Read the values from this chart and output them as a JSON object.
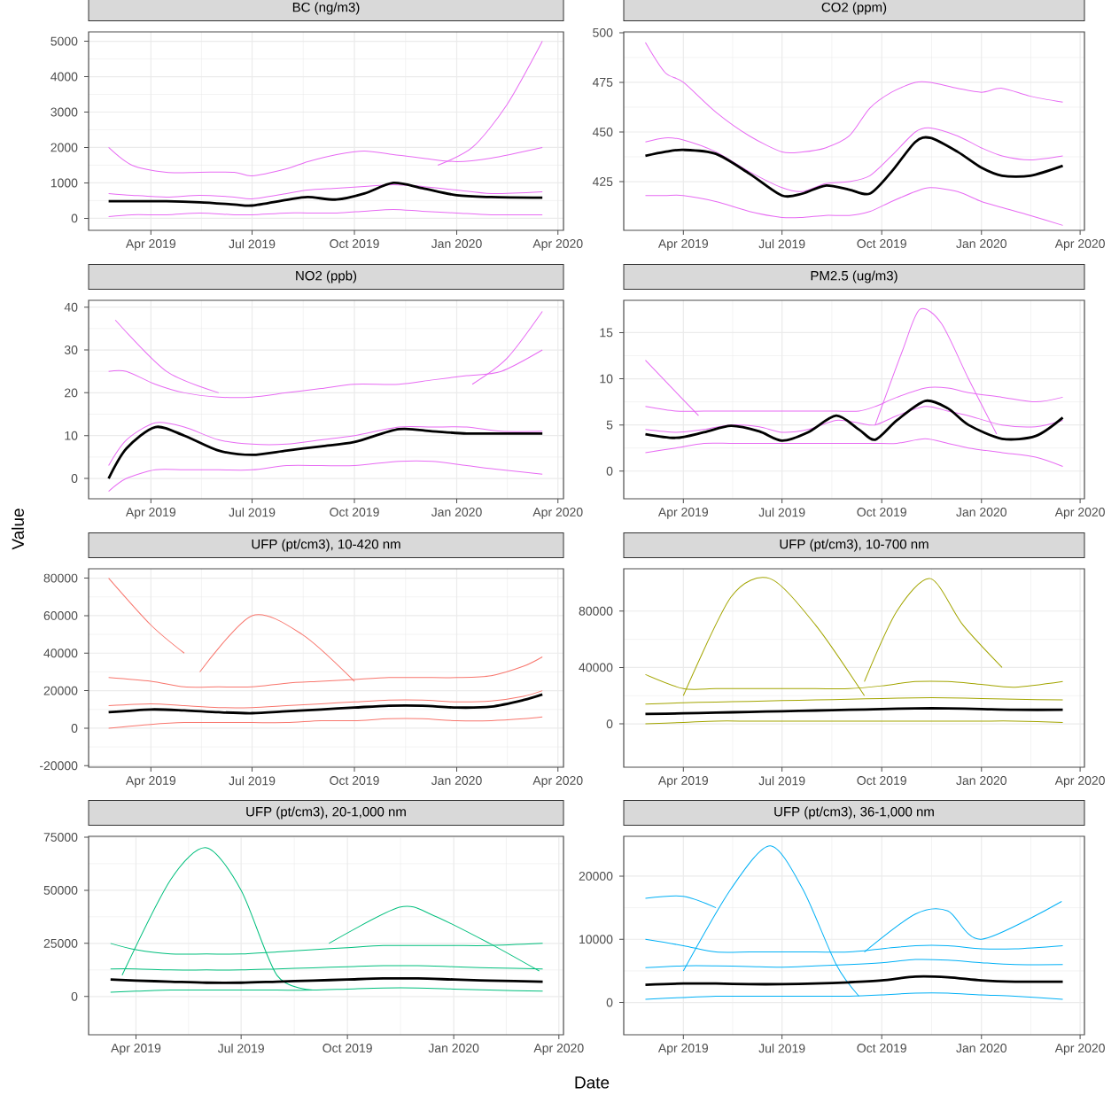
{
  "chart_data": [
    {
      "type": "line",
      "title": "BC (ng/m3)",
      "grid": true,
      "xlim": [
        "2019-02-04",
        "2020-04-06"
      ],
      "xticks": [
        {
          "value": "2019-04-01",
          "label": "Apr 2019"
        },
        {
          "value": "2019-07-01",
          "label": "Jul 2019"
        },
        {
          "value": "2019-10-01",
          "label": "Oct 2019"
        },
        {
          "value": "2020-01-01",
          "label": "Jan 2020"
        },
        {
          "value": "2020-04-01",
          "label": "Apr 2020"
        }
      ],
      "ylim": [
        -340,
        5265
      ],
      "yticks": [
        0,
        1000,
        2000,
        3000,
        4000,
        5000
      ],
      "x": [
        "2019-02-22",
        "2019-03-15",
        "2019-04-15",
        "2019-05-15",
        "2019-06-15",
        "2019-07-01",
        "2019-08-01",
        "2019-08-20",
        "2019-09-15",
        "2019-10-10",
        "2019-11-05",
        "2019-12-01",
        "2020-01-01",
        "2020-02-01",
        "2020-03-18"
      ],
      "series": [
        {
          "color": "#e76bf3",
          "values": [
            700,
            650,
            600,
            650,
            600,
            550,
            700,
            800,
            850,
            900,
            950,
            900,
            800,
            700,
            750
          ]
        },
        {
          "color": "#e76bf3",
          "values": [
            50,
            100,
            100,
            150,
            100,
            100,
            150,
            150,
            150,
            200,
            250,
            200,
            150,
            100,
            100
          ]
        },
        {
          "color": "#e76bf3",
          "values": [
            2000,
            1500,
            1300,
            1300,
            1300,
            1200,
            1400,
            1600,
            1800,
            1900,
            1800,
            1700,
            1600,
            1700,
            2000
          ]
        },
        {
          "color": "#e76bf3",
          "x": [
            "2019-12-15",
            "2020-01-15",
            "2020-02-15",
            "2020-03-18"
          ],
          "values": [
            1500,
            2000,
            3200,
            5000
          ]
        },
        {
          "color": "#000000",
          "values": [
            480,
            480,
            480,
            450,
            390,
            360,
            520,
            600,
            530,
            700,
            1000,
            850,
            650,
            600,
            580
          ]
        }
      ]
    },
    {
      "type": "line",
      "title": "CO2 (ppm)",
      "grid": true,
      "xlim": [
        "2019-02-05",
        "2020-04-05"
      ],
      "xticks": [
        {
          "value": "2019-04-01",
          "label": "Apr 2019"
        },
        {
          "value": "2019-07-01",
          "label": "Jul 2019"
        },
        {
          "value": "2019-10-01",
          "label": "Oct 2019"
        },
        {
          "value": "2020-01-01",
          "label": "Jan 2020"
        },
        {
          "value": "2020-04-01",
          "label": "Apr 2020"
        }
      ],
      "ylim": [
        400.5,
        500.4
      ],
      "yticks": [
        425,
        450,
        475,
        500
      ],
      "x": [
        "2019-02-25",
        "2019-03-15",
        "2019-04-01",
        "2019-05-01",
        "2019-06-01",
        "2019-07-01",
        "2019-07-20",
        "2019-08-10",
        "2019-09-01",
        "2019-09-20",
        "2019-10-10",
        "2019-11-01",
        "2019-11-15",
        "2019-12-10",
        "2020-01-01",
        "2020-01-20",
        "2020-02-15",
        "2020-03-16"
      ],
      "series": [
        {
          "color": "#e76bf3",
          "values": [
            445,
            447,
            446,
            440,
            430,
            422,
            420,
            424,
            425,
            428,
            438,
            450,
            452,
            448,
            442,
            438,
            436,
            438
          ]
        },
        {
          "color": "#e76bf3",
          "values": [
            418,
            418,
            418,
            415,
            410,
            407,
            407,
            408,
            408,
            410,
            415,
            420,
            422,
            420,
            415,
            412,
            408,
            403
          ]
        },
        {
          "color": "#e76bf3",
          "values": [
            495,
            480,
            475,
            460,
            448,
            440,
            440,
            442,
            448,
            462,
            470,
            475,
            475,
            472,
            470,
            472,
            468,
            465
          ]
        },
        {
          "color": "#000000",
          "values": [
            438,
            440,
            441,
            439,
            429,
            418,
            419,
            423,
            421,
            419,
            430,
            445,
            447,
            440,
            432,
            428,
            428,
            433
          ]
        }
      ]
    },
    {
      "type": "line",
      "title": "NO2 (ppb)",
      "ylabel": "Value",
      "grid": true,
      "xlim": [
        "2019-02-04",
        "2020-04-06"
      ],
      "xticks": [
        {
          "value": "2019-04-01",
          "label": "Apr 2019"
        },
        {
          "value": "2019-07-01",
          "label": "Jul 2019"
        },
        {
          "value": "2019-10-01",
          "label": "Oct 2019"
        },
        {
          "value": "2020-01-01",
          "label": "Jan 2020"
        },
        {
          "value": "2020-04-01",
          "label": "Apr 2020"
        }
      ],
      "ylim": [
        -4.75,
        41.6
      ],
      "yticks": [
        0,
        10,
        20,
        30,
        40
      ],
      "x": [
        "2019-02-22",
        "2019-03-10",
        "2019-04-05",
        "2019-05-01",
        "2019-06-01",
        "2019-07-01",
        "2019-08-01",
        "2019-09-01",
        "2019-10-01",
        "2019-11-10",
        "2019-12-10",
        "2020-01-10",
        "2020-02-10",
        "2020-03-18"
      ],
      "series": [
        {
          "color": "#e76bf3",
          "values": [
            3,
            9,
            13,
            12,
            9,
            8,
            8,
            9,
            10,
            12,
            12,
            12,
            11,
            11
          ]
        },
        {
          "color": "#e76bf3",
          "values": [
            -3,
            0,
            2,
            2,
            2,
            2,
            3,
            3,
            3,
            4,
            4,
            3,
            2,
            1
          ]
        },
        {
          "color": "#e76bf3",
          "values": [
            25,
            25,
            22,
            20,
            19,
            19,
            20,
            21,
            22,
            22,
            23,
            24,
            25,
            30
          ]
        },
        {
          "color": "#e76bf3",
          "x": [
            "2020-01-15",
            "2020-02-15",
            "2020-03-18"
          ],
          "values": [
            22,
            28,
            39
          ]
        },
        {
          "color": "#e76bf3",
          "x": [
            "2019-02-28",
            "2019-04-15",
            "2019-06-01"
          ],
          "values": [
            37,
            25,
            20
          ]
        },
        {
          "color": "#000000",
          "values": [
            0,
            7,
            12,
            10,
            6.5,
            5.5,
            6.5,
            7.5,
            8.5,
            11.5,
            11,
            10.5,
            10.5,
            10.5
          ]
        }
      ]
    },
    {
      "type": "line",
      "title": "PM2.5 (ug/m3)",
      "grid": true,
      "xlim": [
        "2019-02-05",
        "2020-04-05"
      ],
      "xticks": [
        {
          "value": "2019-04-01",
          "label": "Apr 2019"
        },
        {
          "value": "2019-07-01",
          "label": "Jul 2019"
        },
        {
          "value": "2019-10-01",
          "label": "Oct 2019"
        },
        {
          "value": "2020-01-01",
          "label": "Jan 2020"
        },
        {
          "value": "2020-04-01",
          "label": "Apr 2020"
        }
      ],
      "ylim": [
        -3,
        18.5
      ],
      "yticks": [
        0,
        5,
        10,
        15
      ],
      "x": [
        "2019-02-25",
        "2019-03-25",
        "2019-04-20",
        "2019-05-15",
        "2019-06-10",
        "2019-07-01",
        "2019-07-25",
        "2019-08-20",
        "2019-09-10",
        "2019-09-25",
        "2019-10-15",
        "2019-11-10",
        "2019-12-01",
        "2019-12-20",
        "2020-01-20",
        "2020-02-20",
        "2020-03-16"
      ],
      "series": [
        {
          "color": "#e76bf3",
          "values": [
            4.5,
            4.2,
            4.5,
            5,
            4.8,
            4.2,
            4.5,
            5.5,
            5.2,
            5,
            6,
            7,
            6.5,
            6,
            5,
            4.8,
            5.5
          ]
        },
        {
          "color": "#e76bf3",
          "values": [
            2,
            2.5,
            3,
            3,
            3,
            3,
            3,
            3,
            3,
            3,
            3,
            3.5,
            3,
            2.5,
            2,
            1.5,
            0.5
          ]
        },
        {
          "color": "#e76bf3",
          "values": [
            7,
            6.5,
            6.5,
            6.5,
            6.5,
            6.5,
            6.5,
            6.5,
            6.5,
            7,
            8,
            9,
            9,
            8.5,
            8,
            7.5,
            8
          ]
        },
        {
          "color": "#e76bf3",
          "x": [
            "2019-09-25",
            "2019-10-20",
            "2019-11-05",
            "2019-11-25",
            "2019-12-20",
            "2020-01-15"
          ],
          "values": [
            5,
            13,
            17.5,
            16,
            10,
            4
          ]
        },
        {
          "color": "#e76bf3",
          "x": [
            "2019-02-25",
            "2019-04-15"
          ],
          "values": [
            12,
            6
          ]
        },
        {
          "color": "#000000",
          "values": [
            4,
            3.6,
            4.2,
            4.9,
            4.3,
            3.3,
            4.2,
            6,
            4.5,
            3.4,
            5.5,
            7.6,
            6.8,
            5,
            3.5,
            3.8,
            5.8
          ]
        }
      ]
    },
    {
      "type": "line",
      "title": "UFP (pt/cm3), 10-420 nm",
      "grid": true,
      "xlim": [
        "2019-02-04",
        "2020-04-06"
      ],
      "xticks": [
        {
          "value": "2019-04-01",
          "label": "Apr 2019"
        },
        {
          "value": "2019-07-01",
          "label": "Jul 2019"
        },
        {
          "value": "2019-10-01",
          "label": "Oct 2019"
        },
        {
          "value": "2020-01-01",
          "label": "Jan 2020"
        },
        {
          "value": "2020-04-01",
          "label": "Apr 2020"
        }
      ],
      "ylim": [
        -20800,
        85000
      ],
      "yticks": [
        -20000,
        0,
        20000,
        40000,
        60000,
        80000
      ],
      "x": [
        "2019-02-22",
        "2019-04-01",
        "2019-05-01",
        "2019-06-01",
        "2019-07-01",
        "2019-08-01",
        "2019-09-01",
        "2019-10-01",
        "2019-11-01",
        "2019-12-01",
        "2020-01-01",
        "2020-02-01",
        "2020-03-01",
        "2020-03-18"
      ],
      "series": [
        {
          "color": "#f8766d",
          "values": [
            12000,
            13000,
            12000,
            11000,
            11000,
            12000,
            13000,
            14000,
            15000,
            15000,
            14000,
            14500,
            17000,
            20000
          ]
        },
        {
          "color": "#f8766d",
          "values": [
            0,
            2000,
            3000,
            3000,
            3000,
            3000,
            4000,
            4000,
            5000,
            5000,
            4000,
            4000,
            5000,
            6000
          ]
        },
        {
          "color": "#f8766d",
          "values": [
            27000,
            25000,
            22000,
            22000,
            22000,
            24000,
            25000,
            26000,
            27000,
            27000,
            27000,
            28000,
            33000,
            38000
          ]
        },
        {
          "color": "#f8766d",
          "x": [
            "2019-02-22",
            "2019-04-01",
            "2019-05-01"
          ],
          "values": [
            80000,
            55000,
            40000
          ]
        },
        {
          "color": "#f8766d",
          "x": [
            "2019-05-15",
            "2019-07-01",
            "2019-08-15",
            "2019-10-01"
          ],
          "values": [
            30000,
            60000,
            50000,
            25000
          ]
        },
        {
          "color": "#000000",
          "values": [
            8500,
            10000,
            9500,
            8500,
            8000,
            9000,
            10000,
            11000,
            12000,
            12000,
            11000,
            11500,
            15000,
            18000
          ]
        }
      ]
    },
    {
      "type": "line",
      "title": "UFP (pt/cm3), 10-700 nm",
      "grid": true,
      "xlim": [
        "2019-02-05",
        "2020-04-05"
      ],
      "xticks": [
        {
          "value": "2019-04-01",
          "label": "Apr 2019"
        },
        {
          "value": "2019-07-01",
          "label": "Jul 2019"
        },
        {
          "value": "2019-10-01",
          "label": "Oct 2019"
        },
        {
          "value": "2020-01-01",
          "label": "Jan 2020"
        },
        {
          "value": "2020-04-01",
          "label": "Apr 2020"
        }
      ],
      "ylim": [
        -30700,
        110000
      ],
      "yticks": [
        0,
        40000,
        80000
      ],
      "x": [
        "2019-02-25",
        "2019-04-01",
        "2019-05-01",
        "2019-06-01",
        "2019-07-01",
        "2019-08-01",
        "2019-09-01",
        "2019-10-01",
        "2019-11-01",
        "2019-12-01",
        "2020-01-01",
        "2020-02-01",
        "2020-03-16"
      ],
      "series": [
        {
          "color": "#a3a500",
          "values": [
            14000,
            15000,
            15500,
            16000,
            16500,
            17000,
            17500,
            18000,
            18500,
            18500,
            18000,
            17500,
            17000
          ]
        },
        {
          "color": "#a3a500",
          "values": [
            0,
            1000,
            2000,
            2000,
            2000,
            2000,
            2000,
            2000,
            2000,
            2000,
            2000,
            2000,
            1000
          ]
        },
        {
          "color": "#a3a500",
          "values": [
            35000,
            25000,
            25000,
            25000,
            25000,
            25000,
            25000,
            27000,
            30000,
            30000,
            28000,
            26000,
            30000
          ]
        },
        {
          "color": "#a3a500",
          "x": [
            "2019-04-01",
            "2019-05-15",
            "2019-06-20",
            "2019-08-01",
            "2019-09-15"
          ],
          "values": [
            20000,
            90000,
            103000,
            70000,
            20000
          ]
        },
        {
          "color": "#a3a500",
          "x": [
            "2019-09-15",
            "2019-10-15",
            "2019-11-15",
            "2019-12-15",
            "2020-01-20"
          ],
          "values": [
            30000,
            80000,
            103000,
            70000,
            40000
          ]
        },
        {
          "color": "#000000",
          "values": [
            7000,
            7500,
            8000,
            8500,
            9000,
            9500,
            10000,
            10500,
            11000,
            11000,
            10500,
            10000,
            10000
          ]
        }
      ]
    },
    {
      "type": "line",
      "title": "UFP (pt/cm3), 20-1,000 nm",
      "xlabel": "Date",
      "grid": true,
      "xlim": [
        "2019-02-19",
        "2020-04-05"
      ],
      "xticks": [
        {
          "value": "2019-04-01",
          "label": "Apr 2019"
        },
        {
          "value": "2019-07-01",
          "label": "Jul 2019"
        },
        {
          "value": "2019-10-01",
          "label": "Oct 2019"
        },
        {
          "value": "2020-01-01",
          "label": "Jan 2020"
        },
        {
          "value": "2020-04-01",
          "label": "Apr 2020"
        }
      ],
      "ylim": [
        -18000,
        75400
      ],
      "yticks": [
        0,
        25000,
        50000,
        75000
      ],
      "x": [
        "2019-03-10",
        "2019-04-01",
        "2019-05-01",
        "2019-06-01",
        "2019-07-01",
        "2019-08-01",
        "2019-09-01",
        "2019-10-01",
        "2019-11-01",
        "2019-12-01",
        "2020-01-01",
        "2020-02-01",
        "2020-03-18"
      ],
      "series": [
        {
          "color": "#00bf7d",
          "values": [
            13000,
            13000,
            12500,
            12500,
            12500,
            13000,
            13500,
            14000,
            14500,
            14500,
            14000,
            13500,
            13000
          ]
        },
        {
          "color": "#00bf7d",
          "values": [
            2000,
            2500,
            3000,
            3000,
            3000,
            3000,
            3000,
            3500,
            4000,
            4000,
            3500,
            3000,
            2500
          ]
        },
        {
          "color": "#00bf7d",
          "values": [
            25000,
            22000,
            20000,
            20000,
            20000,
            21000,
            22000,
            23000,
            24000,
            24000,
            24000,
            24000,
            25000
          ]
        },
        {
          "color": "#00bf7d",
          "x": [
            "2019-03-20",
            "2019-05-01",
            "2019-06-01",
            "2019-07-01",
            "2019-08-01",
            "2019-09-01"
          ],
          "values": [
            10000,
            55000,
            70000,
            50000,
            10000,
            3000
          ]
        },
        {
          "color": "#00bf7d",
          "x": [
            "2019-09-15",
            "2019-11-15",
            "2019-12-15",
            "2020-02-01",
            "2020-03-15"
          ],
          "values": [
            25000,
            42000,
            38000,
            25000,
            12000
          ]
        },
        {
          "color": "#000000",
          "values": [
            8000,
            7500,
            7000,
            6500,
            6500,
            7000,
            7500,
            8000,
            8500,
            8500,
            8000,
            7500,
            7000
          ]
        }
      ]
    },
    {
      "type": "line",
      "title": "UFP (pt/cm3), 36-1,000 nm",
      "grid": true,
      "xlim": [
        "2019-02-05",
        "2020-04-05"
      ],
      "xticks": [
        {
          "value": "2019-04-01",
          "label": "Apr 2019"
        },
        {
          "value": "2019-07-01",
          "label": "Jul 2019"
        },
        {
          "value": "2019-10-01",
          "label": "Oct 2019"
        },
        {
          "value": "2020-01-01",
          "label": "Jan 2020"
        },
        {
          "value": "2020-04-01",
          "label": "Apr 2020"
        }
      ],
      "ylim": [
        -5100,
        26300
      ],
      "yticks": [
        0,
        10000,
        20000
      ],
      "x": [
        "2019-02-25",
        "2019-04-01",
        "2019-05-01",
        "2019-06-01",
        "2019-07-01",
        "2019-08-01",
        "2019-09-01",
        "2019-10-01",
        "2019-11-01",
        "2019-12-01",
        "2020-01-01",
        "2020-02-01",
        "2020-03-16"
      ],
      "series": [
        {
          "color": "#00b0f6",
          "values": [
            5500,
            5800,
            5800,
            5700,
            5600,
            5800,
            6000,
            6300,
            6800,
            6700,
            6300,
            6000,
            6000
          ]
        },
        {
          "color": "#00b0f6",
          "values": [
            500,
            800,
            1000,
            1000,
            1000,
            1000,
            1000,
            1200,
            1500,
            1500,
            1200,
            1000,
            500
          ]
        },
        {
          "color": "#00b0f6",
          "values": [
            10000,
            9000,
            8000,
            8000,
            8000,
            8000,
            8000,
            8500,
            9000,
            9000,
            8500,
            8500,
            9000
          ]
        },
        {
          "color": "#00b0f6",
          "x": [
            "2019-02-25",
            "2019-04-01",
            "2019-05-01"
          ],
          "values": [
            16500,
            16800,
            15000
          ]
        },
        {
          "color": "#00b0f6",
          "x": [
            "2019-04-01",
            "2019-05-15",
            "2019-06-20",
            "2019-07-20",
            "2019-08-20",
            "2019-09-10"
          ],
          "values": [
            5000,
            18000,
            24800,
            18000,
            6000,
            1000
          ]
        },
        {
          "color": "#00b0f6",
          "x": [
            "2019-09-15",
            "2019-11-01",
            "2019-12-01",
            "2020-01-01",
            "2020-03-15"
          ],
          "values": [
            8000,
            14000,
            14500,
            10000,
            16000
          ]
        },
        {
          "color": "#000000",
          "values": [
            2800,
            3000,
            3000,
            2900,
            2900,
            3000,
            3200,
            3500,
            4100,
            4000,
            3500,
            3300,
            3300
          ]
        }
      ]
    }
  ]
}
